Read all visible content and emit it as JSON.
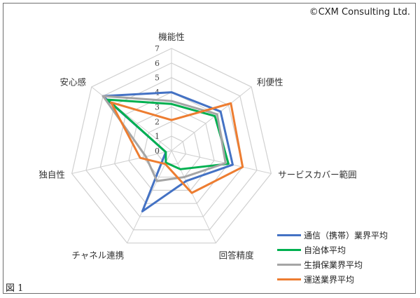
{
  "copyright": "©CXM Consulting Ltd.",
  "figure_label": "図 1",
  "colors": {
    "grid": "#d0d0d0",
    "series": [
      "#4472c4",
      "#00b050",
      "#a5a5a5",
      "#ed7d31"
    ]
  },
  "chart_data": {
    "type": "radar",
    "title": "",
    "axes": [
      "機能性",
      "利便性",
      "サービスカバー範囲",
      "回答精度",
      "チャネル連携",
      "独自性",
      "安心感"
    ],
    "ticks": [
      0,
      1,
      2,
      3,
      4,
      5,
      6,
      7
    ],
    "range": [
      0,
      7
    ],
    "grid": true,
    "legend_position": "bottom-right",
    "series": [
      {
        "name": "通信（携帯）業界平均",
        "values": [
          4.0,
          4.3,
          4.3,
          2.3,
          4.6,
          0.4,
          6.0
        ]
      },
      {
        "name": "自治体平均",
        "values": [
          3.2,
          3.8,
          4.0,
          1.4,
          0.9,
          0.4,
          5.6
        ]
      },
      {
        "name": "生損保業界平均",
        "values": [
          3.4,
          4.0,
          3.8,
          2.0,
          2.3,
          1.8,
          6.0
        ]
      },
      {
        "name": "運送業界平均",
        "values": [
          2.1,
          5.2,
          5.0,
          3.2,
          1.0,
          2.2,
          5.3
        ]
      }
    ]
  }
}
